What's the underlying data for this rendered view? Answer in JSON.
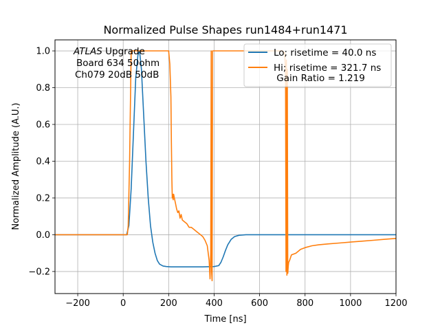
{
  "chart_data": {
    "type": "line",
    "title": "Normalized Pulse Shapes run1484+run1471",
    "xlabel": "Time [ns]",
    "ylabel": "Normalized Amplitude (A.U.)",
    "xlim": [
      -300,
      1200
    ],
    "ylim": [
      -0.32,
      1.06
    ],
    "grid": true,
    "xticks": [
      -200,
      0,
      200,
      400,
      600,
      800,
      1000,
      1200
    ],
    "xtick_labels": [
      "−200",
      "0",
      "200",
      "400",
      "600",
      "800",
      "1000",
      "1200"
    ],
    "yticks": [
      -0.2,
      0.0,
      0.2,
      0.4,
      0.6,
      0.8,
      1.0
    ],
    "ytick_labels": [
      "−0.2",
      "0.0",
      "0.2",
      "0.4",
      "0.6",
      "0.8",
      "1.0"
    ],
    "legend_position": "top-right",
    "annotation": {
      "atlas": "ATLAS",
      "upgrade": " Upgrade",
      "line2": "Board 634 50ohm",
      "line3": "Ch079 20dB 50dB"
    },
    "series": [
      {
        "name": "Lo; risetime = 40.0 ns",
        "color": "#1f77b4",
        "x": [
          -300,
          0,
          15,
          25,
          35,
          45,
          55,
          65,
          72,
          80,
          90,
          100,
          110,
          120,
          130,
          140,
          150,
          160,
          175,
          190,
          210,
          250,
          300,
          350,
          400,
          420,
          430,
          440,
          450,
          460,
          475,
          490,
          510,
          540,
          600,
          1200
        ],
        "y": [
          0.0,
          0.0,
          0.0,
          0.05,
          0.25,
          0.55,
          0.85,
          0.98,
          1.0,
          0.9,
          0.65,
          0.4,
          0.2,
          0.05,
          -0.04,
          -0.1,
          -0.14,
          -0.16,
          -0.17,
          -0.173,
          -0.175,
          -0.175,
          -0.175,
          -0.175,
          -0.173,
          -0.168,
          -0.15,
          -0.12,
          -0.085,
          -0.055,
          -0.025,
          -0.01,
          -0.003,
          0.0,
          0.0,
          0.0
        ]
      },
      {
        "name": "Hi; risetime = 321.7 ns",
        "color": "#ff7f0e",
        "x": [
          -300,
          18,
          22,
          28,
          35,
          50,
          80,
          120,
          160,
          200,
          205,
          210,
          212,
          214,
          216,
          218,
          220,
          222,
          225,
          230,
          235,
          240,
          245,
          250,
          255,
          260,
          270,
          280,
          290,
          300,
          310,
          320,
          330,
          340,
          350,
          360,
          370,
          378,
          382,
          385,
          387,
          389,
          391,
          393,
          395,
          397,
          400,
          420,
          500,
          600,
          700,
          710,
          714,
          716,
          718,
          720,
          722,
          724,
          726,
          728,
          732,
          740,
          760,
          780,
          800,
          830,
          860,
          900,
          950,
          1000,
          1050,
          1100,
          1150,
          1200
        ],
        "y": [
          0.0,
          0.0,
          0.05,
          0.4,
          1.0,
          1.0,
          1.0,
          1.0,
          1.0,
          1.0,
          0.93,
          0.75,
          0.5,
          0.3,
          0.2,
          0.22,
          0.19,
          0.22,
          0.2,
          0.17,
          0.14,
          0.12,
          0.13,
          0.09,
          0.11,
          0.08,
          0.07,
          0.06,
          0.04,
          0.04,
          0.03,
          0.02,
          0.01,
          0.0,
          -0.01,
          -0.03,
          -0.06,
          -0.14,
          -0.24,
          -0.1,
          1.0,
          -0.2,
          -0.25,
          1.0,
          1.0,
          1.0,
          1.0,
          1.0,
          1.0,
          1.0,
          1.0,
          0.99,
          0.9,
          -0.2,
          0.95,
          -0.22,
          0.9,
          -0.21,
          -0.17,
          -0.15,
          -0.14,
          -0.11,
          -0.1,
          -0.08,
          -0.07,
          -0.06,
          -0.055,
          -0.05,
          -0.045,
          -0.04,
          -0.035,
          -0.03,
          -0.025,
          -0.02
        ]
      }
    ],
    "legend": [
      {
        "text": "Lo; risetime = 40.0 ns",
        "color": "#1f77b4"
      },
      {
        "text": "Hi; risetime = 321.7 ns",
        "color": "#ff7f0e"
      },
      {
        "text": " Gain Ratio = 1.219",
        "color": null
      }
    ]
  }
}
